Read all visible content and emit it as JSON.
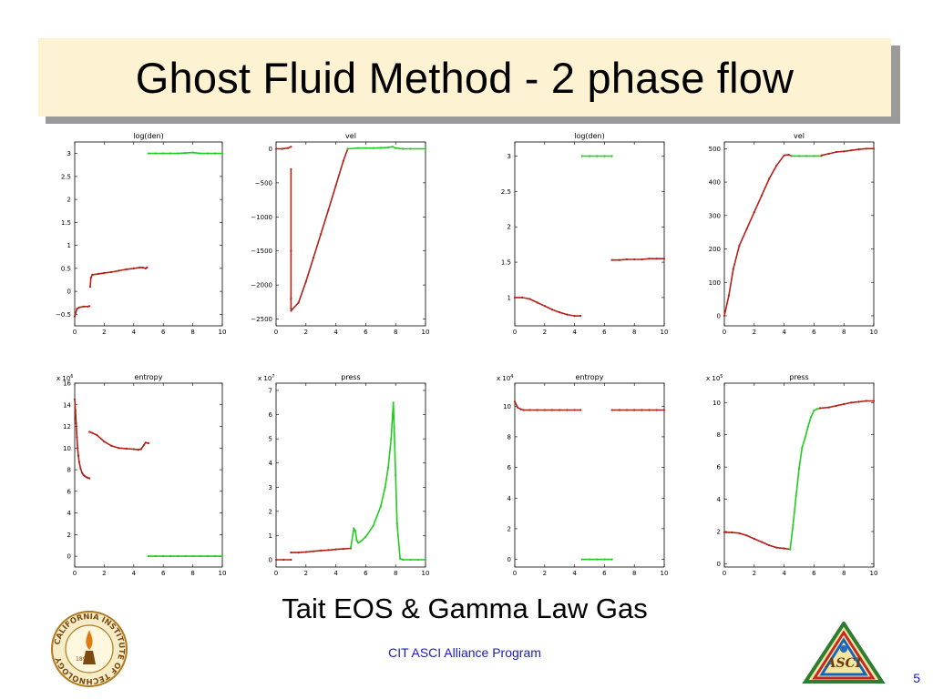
{
  "slide": {
    "title": "Ghost Fluid Method - 2 phase flow",
    "subtitle": "Tait EOS & Gamma Law Gas",
    "program": "CIT ASCI Alliance Program",
    "page_number": "5",
    "logo_left_text": "CALIFORNIA INSTITUTE OF TECHNOLOGY",
    "logo_left_year": "1891",
    "logo_right_text": "ASCI"
  },
  "colors": {
    "phase1": "#b32018",
    "phase2": "#22cc1e",
    "title_bg": "#fdf3d2",
    "title_shadow": "#9a9a9a",
    "footer_text": "#1a1acd"
  },
  "chart_data": [
    {
      "type": "scatter",
      "title": "log(den)",
      "xlim": [
        0,
        10
      ],
      "ylim": [
        -0.75,
        3.25
      ],
      "xticks": [
        0,
        2,
        4,
        6,
        8,
        10
      ],
      "yticks": [
        -0.5,
        0,
        0.5,
        1,
        1.5,
        2,
        2.5,
        3
      ],
      "series": [
        {
          "color": "red",
          "x": [
            0,
            0.15,
            0.3,
            0.6,
            0.9,
            1.0
          ],
          "y": [
            -0.55,
            -0.38,
            -0.35,
            -0.33,
            -0.33,
            -0.32
          ]
        },
        {
          "color": "red",
          "x": [
            1.05,
            1.1,
            1.2
          ],
          "y": [
            0.1,
            0.3,
            0.36
          ]
        },
        {
          "color": "red",
          "x": [
            1.2,
            1.6,
            2,
            2.5,
            3,
            3.5,
            4,
            4.4,
            4.6,
            4.8,
            4.9
          ],
          "y": [
            0.36,
            0.38,
            0.4,
            0.42,
            0.45,
            0.48,
            0.5,
            0.52,
            0.52,
            0.5,
            0.52
          ]
        },
        {
          "color": "green",
          "x": [
            5,
            5.5,
            6,
            6.5,
            7,
            7.5,
            8,
            8.5,
            9,
            9.5,
            10
          ],
          "y": [
            3,
            3,
            3,
            3,
            3,
            3.01,
            3.02,
            3,
            3,
            3,
            3
          ]
        }
      ]
    },
    {
      "type": "scatter",
      "title": "vel",
      "xlim": [
        0,
        10
      ],
      "ylim": [
        -2600,
        100
      ],
      "xticks": [
        0,
        2,
        4,
        6,
        8,
        10
      ],
      "yticks": [
        0,
        -500,
        -1000,
        -1500,
        -2000,
        -2500
      ],
      "series": [
        {
          "color": "red",
          "x": [
            0,
            0.4,
            0.8,
            1.0
          ],
          "y": [
            0,
            0,
            10,
            30
          ]
        },
        {
          "color": "red",
          "x": [
            1.0,
            1.0,
            1.0,
            1.0
          ],
          "y": [
            -300,
            -1500,
            -2200,
            -2350
          ]
        },
        {
          "color": "red",
          "x": [
            1.0,
            1.5,
            2,
            2.5,
            3,
            3.5,
            4,
            4.5,
            4.8
          ],
          "y": [
            -2380,
            -2260,
            -1950,
            -1600,
            -1250,
            -900,
            -540,
            -180,
            0
          ]
        },
        {
          "color": "green",
          "x": [
            4.8,
            5.5,
            6,
            6.5,
            7,
            7.5,
            7.8,
            8,
            8.5,
            9,
            10
          ],
          "y": [
            0,
            10,
            10,
            10,
            15,
            20,
            30,
            10,
            0,
            0,
            0
          ]
        }
      ]
    },
    {
      "type": "scatter",
      "title": "log(den)",
      "xlim": [
        0,
        10
      ],
      "ylim": [
        0.6,
        3.2
      ],
      "xticks": [
        0,
        2,
        4,
        6,
        8,
        10
      ],
      "yticks": [
        1,
        1.5,
        2,
        2.5,
        3
      ],
      "series": [
        {
          "color": "red",
          "x": [
            0,
            0.5,
            1,
            1.5,
            2,
            2.5,
            3,
            3.5,
            4,
            4.4
          ],
          "y": [
            1,
            1,
            0.98,
            0.93,
            0.88,
            0.83,
            0.79,
            0.76,
            0.74,
            0.74
          ]
        },
        {
          "color": "green",
          "x": [
            4.5,
            5,
            5.5,
            6,
            6.5
          ],
          "y": [
            3,
            3,
            3,
            3,
            3
          ]
        },
        {
          "color": "red",
          "x": [
            6.5,
            7,
            7.5,
            8,
            8.5,
            9,
            9.5,
            10
          ],
          "y": [
            1.53,
            1.53,
            1.54,
            1.54,
            1.54,
            1.55,
            1.55,
            1.55
          ]
        }
      ]
    },
    {
      "type": "scatter",
      "title": "vel",
      "xlim": [
        0,
        10
      ],
      "ylim": [
        -30,
        520
      ],
      "xticks": [
        0,
        2,
        4,
        6,
        8,
        10
      ],
      "yticks": [
        0,
        100,
        200,
        300,
        400,
        500
      ],
      "series": [
        {
          "color": "red",
          "x": [
            0,
            0.3,
            0.6,
            1,
            1.5,
            2,
            2.5,
            3,
            3.5,
            4,
            4.3,
            4.5
          ],
          "y": [
            0,
            60,
            140,
            210,
            260,
            310,
            360,
            410,
            450,
            480,
            482,
            478
          ]
        },
        {
          "color": "green",
          "x": [
            4.5,
            5,
            5.5,
            6,
            6.5
          ],
          "y": [
            478,
            478,
            478,
            478,
            478
          ]
        },
        {
          "color": "red",
          "x": [
            6.5,
            7,
            7.5,
            8,
            8.5,
            9,
            9.5,
            10
          ],
          "y": [
            480,
            485,
            490,
            492,
            495,
            498,
            500,
            500
          ]
        }
      ]
    },
    {
      "type": "scatter",
      "title": "entropy",
      "exponent": "6",
      "xlim": [
        0,
        10
      ],
      "ylim": [
        -1,
        16
      ],
      "xticks": [
        0,
        2,
        4,
        6,
        8,
        10
      ],
      "yticks": [
        0,
        2,
        4,
        6,
        8,
        10,
        12,
        14,
        16
      ],
      "series": [
        {
          "color": "red",
          "x": [
            0,
            0.05,
            0.1,
            0.15,
            0.2,
            0.25,
            0.3,
            0.4,
            0.5,
            0.6,
            0.7,
            0.8,
            0.9,
            1.0
          ],
          "y": [
            14.5,
            13.5,
            12.3,
            11,
            10,
            9.3,
            8.7,
            8.1,
            7.7,
            7.5,
            7.4,
            7.3,
            7.25,
            7.2
          ]
        },
        {
          "color": "red",
          "x": [
            1.0,
            1.2,
            1.5,
            2,
            2.5,
            3,
            3.5,
            4,
            4.3,
            4.5,
            4.7,
            4.8,
            5.0
          ],
          "y": [
            11.5,
            11.4,
            11.2,
            10.6,
            10.2,
            10,
            9.95,
            9.9,
            9.85,
            9.9,
            10.3,
            10.5,
            10.45
          ]
        },
        {
          "color": "green",
          "x": [
            5,
            5.5,
            6,
            6.5,
            7,
            7.5,
            8,
            8.5,
            9,
            9.5,
            10
          ],
          "y": [
            0,
            0,
            0,
            0,
            0,
            0,
            0,
            0,
            0,
            0,
            0
          ]
        }
      ]
    },
    {
      "type": "scatter",
      "title": "press",
      "exponent": "7",
      "xlim": [
        0,
        10
      ],
      "ylim": [
        -0.3,
        7.3
      ],
      "xticks": [
        0,
        2,
        4,
        6,
        8,
        10
      ],
      "yticks": [
        0,
        1,
        2,
        3,
        4,
        5,
        6,
        7
      ],
      "series": [
        {
          "color": "red",
          "x": [
            0,
            0.5,
            1.0
          ],
          "y": [
            0,
            0,
            0
          ]
        },
        {
          "color": "red",
          "x": [
            1.0,
            1.5,
            2,
            2.5,
            3,
            3.5,
            4,
            4.5,
            5
          ],
          "y": [
            0.3,
            0.3,
            0.32,
            0.35,
            0.38,
            0.4,
            0.43,
            0.45,
            0.47
          ]
        },
        {
          "color": "green",
          "x": [
            5,
            5.2,
            5.3,
            5.4,
            5.5,
            5.7,
            6,
            6.5,
            7,
            7.3,
            7.5,
            7.7,
            7.8,
            7.85,
            7.9,
            8.0,
            8.1,
            8.3,
            8.5,
            9,
            9.5,
            10
          ],
          "y": [
            0.5,
            1.3,
            1.2,
            0.8,
            0.7,
            0.78,
            0.95,
            1.4,
            2.2,
            3,
            3.8,
            5,
            6,
            6.5,
            5.5,
            3.5,
            1.5,
            0.05,
            0,
            0,
            0,
            0
          ]
        }
      ]
    },
    {
      "type": "scatter",
      "title": "entropy",
      "exponent": "4",
      "xlim": [
        0,
        10
      ],
      "ylim": [
        -0.5,
        11.5
      ],
      "xticks": [
        0,
        2,
        4,
        6,
        8,
        10
      ],
      "yticks": [
        0,
        2,
        4,
        6,
        8,
        10
      ],
      "series": [
        {
          "color": "red",
          "x": [
            0,
            0.2,
            0.4,
            0.6,
            1,
            1.5,
            2,
            2.5,
            3,
            3.5,
            4,
            4.4
          ],
          "y": [
            10.3,
            9.9,
            9.8,
            9.75,
            9.75,
            9.75,
            9.75,
            9.75,
            9.75,
            9.75,
            9.75,
            9.75
          ]
        },
        {
          "color": "green",
          "x": [
            4.5,
            5,
            5.5,
            6,
            6.5
          ],
          "y": [
            0,
            0,
            0,
            0,
            0
          ]
        },
        {
          "color": "red",
          "x": [
            6.5,
            7,
            7.5,
            8,
            8.5,
            9,
            9.5,
            10
          ],
          "y": [
            9.75,
            9.75,
            9.75,
            9.75,
            9.75,
            9.75,
            9.75,
            9.75
          ]
        }
      ]
    },
    {
      "type": "scatter",
      "title": "press",
      "exponent": "5",
      "xlim": [
        0,
        10
      ],
      "ylim": [
        -0.2,
        11.2
      ],
      "xticks": [
        0,
        2,
        4,
        6,
        8,
        10
      ],
      "yticks": [
        0,
        2,
        4,
        6,
        8,
        10
      ],
      "series": [
        {
          "color": "red",
          "x": [
            0,
            0.5,
            1,
            1.5,
            2,
            2.5,
            3,
            3.5,
            4,
            4.4
          ],
          "y": [
            1.95,
            1.95,
            1.9,
            1.75,
            1.55,
            1.35,
            1.15,
            1,
            0.95,
            0.9
          ]
        },
        {
          "color": "green",
          "x": [
            4.4,
            4.6,
            4.8,
            5,
            5.2,
            5.4,
            5.6,
            5.8,
            6,
            6.2,
            6.4
          ],
          "y": [
            0.9,
            2.4,
            4.2,
            5.9,
            7.2,
            7.8,
            8.5,
            9.1,
            9.5,
            9.6,
            9.65
          ]
        },
        {
          "color": "red",
          "x": [
            6.4,
            7,
            7.5,
            8,
            8.5,
            9,
            9.5,
            10
          ],
          "y": [
            9.65,
            9.7,
            9.8,
            9.9,
            10,
            10.05,
            10.1,
            10.1
          ]
        }
      ]
    }
  ]
}
